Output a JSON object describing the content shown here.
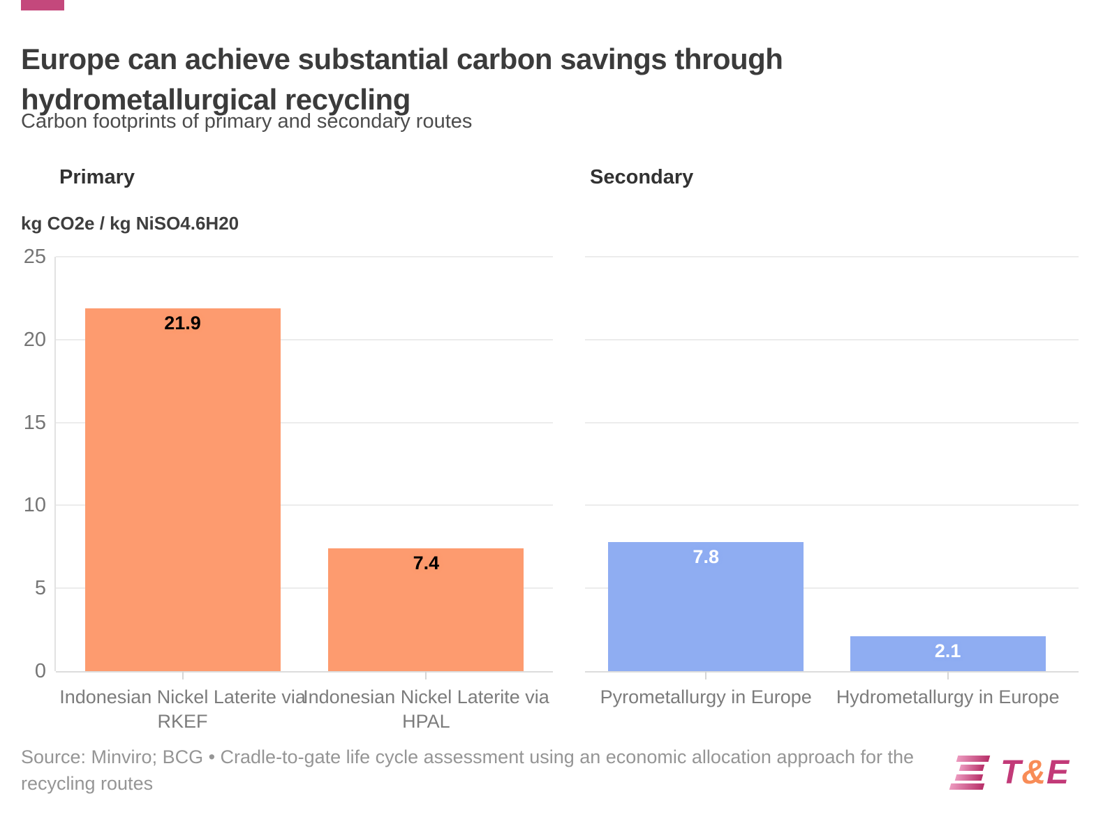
{
  "accent_color": "#c4487c",
  "header": {
    "title": "Europe can achieve substantial carbon savings through hydrometallurgical recycling",
    "subtitle": "Carbon footprints of primary and secondary routes"
  },
  "chart_data": {
    "type": "bar",
    "title": "Europe can achieve substantial carbon savings through hydrometallurgical recycling",
    "subtitle": "Carbon footprints of primary and secondary routes",
    "ylabel": "kg CO2e / kg NiSO4.6H20",
    "xlabel": "",
    "ylim": [
      0,
      25
    ],
    "yticks": [
      0,
      5,
      10,
      15,
      20,
      25
    ],
    "grid": true,
    "legend_position": "none",
    "panels": [
      {
        "label": "Primary",
        "bar_color": "#fd9b6f",
        "value_label_color": "#000000",
        "categories": [
          "Indonesian Nickel Laterite via RKEF",
          "Indonesian Nickel Laterite via HPAL"
        ],
        "values": [
          21.9,
          7.4
        ]
      },
      {
        "label": "Secondary",
        "bar_color": "#8fadf2",
        "value_label_color": "#ffffff",
        "categories": [
          "Pyrometallurgy in Europe",
          "Hydrometallurgy in Europe"
        ],
        "values": [
          7.8,
          2.1
        ]
      }
    ]
  },
  "footer": {
    "source": "Source: Minviro; BCG • Cradle-to-gate life cycle assessment using an economic allocation approach for the recycling routes",
    "logo": {
      "t": "T",
      "amp": "&",
      "e": "E",
      "magenta": "#c23a78",
      "orange": "#f88c57"
    }
  }
}
